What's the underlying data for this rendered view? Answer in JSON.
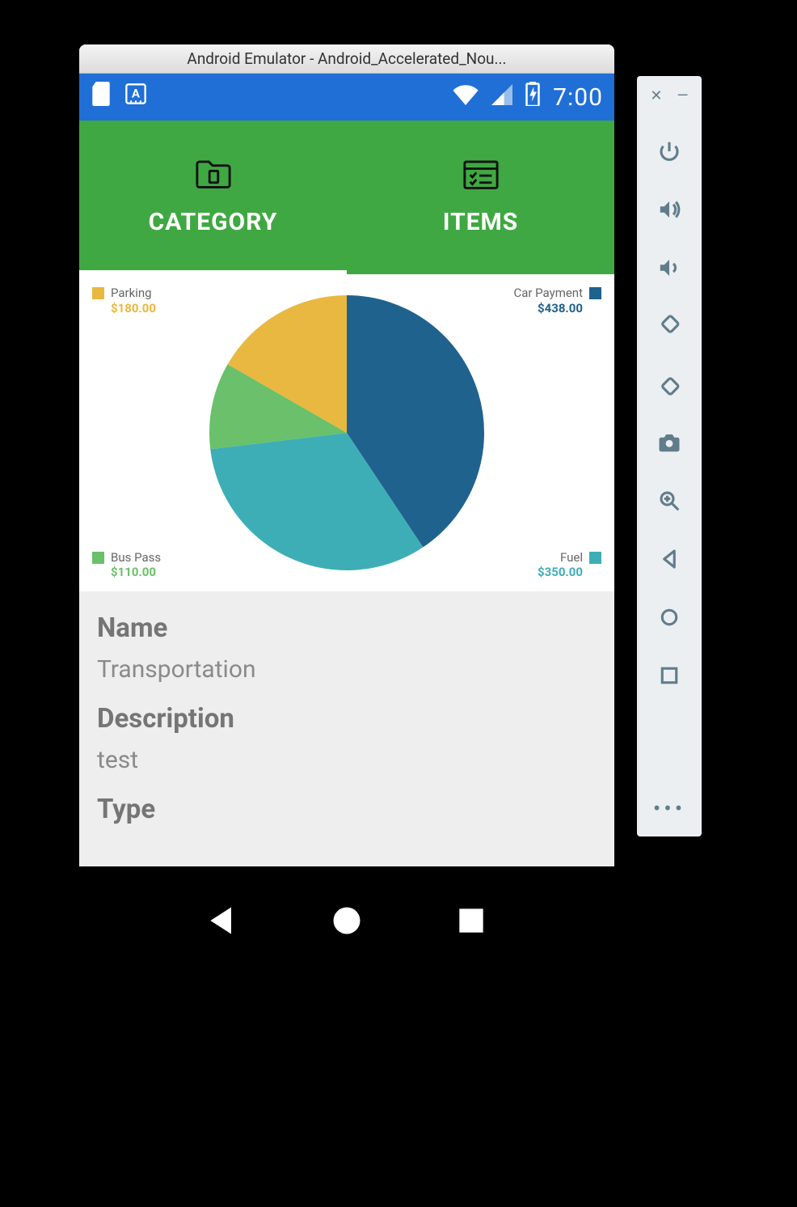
{
  "emulator": {
    "title": "Android Emulator - Android_Accelerated_Nou...",
    "toolbar_icons": [
      "power",
      "volume-up",
      "volume-down",
      "rotate-left",
      "rotate-right",
      "camera",
      "zoom",
      "back",
      "home",
      "overview",
      "more"
    ]
  },
  "statusbar": {
    "clock": "7:00",
    "bg_color": "#1f6fd6"
  },
  "tabs": {
    "bg_color": "#3fa842",
    "active_index": 0,
    "items": [
      {
        "label": "CATEGORY",
        "icon": "folder-doc"
      },
      {
        "label": "ITEMS",
        "icon": "checklist-window"
      }
    ]
  },
  "pie": {
    "bg_color": "#ffffff",
    "slices": [
      {
        "name": "Car Payment",
        "amount_text": "$438.00",
        "value": 438,
        "color": "#1f628d"
      },
      {
        "name": "Fuel",
        "amount_text": "$350.00",
        "value": 350,
        "color": "#3eaeb6"
      },
      {
        "name": "Bus Pass",
        "amount_text": "$110.00",
        "value": 110,
        "color": "#6ac06b"
      },
      {
        "name": "Parking",
        "amount_text": "$180.00",
        "value": 180,
        "color": "#e9b840"
      }
    ],
    "legend_positions": [
      "top-right",
      "bot-right",
      "bot-left",
      "top-left"
    ],
    "amount_color_map": {
      "Car Payment": "#1f628d",
      "Fuel": "#3eaeb6",
      "Bus Pass": "#6ac06b",
      "Parking": "#e9b840"
    }
  },
  "details": {
    "labels": {
      "name": "Name",
      "description": "Description",
      "type": "Type"
    },
    "values": {
      "name": "Transportation",
      "description": "test"
    }
  }
}
